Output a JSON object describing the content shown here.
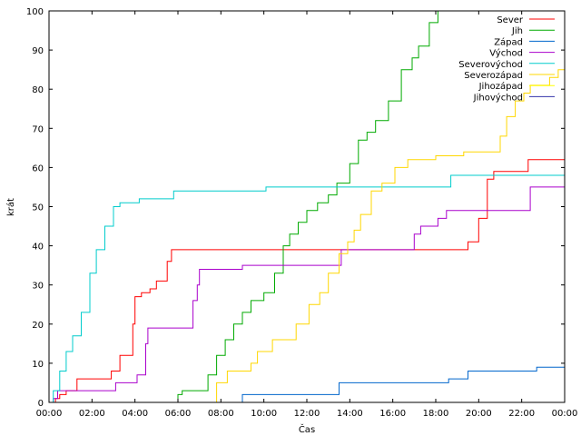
{
  "chart_data": {
    "type": "line",
    "title": "",
    "xlabel": "Čas",
    "ylabel": "krát",
    "xlim": [
      0,
      24
    ],
    "ylim": [
      0,
      100
    ],
    "xticks": [
      {
        "v": 0,
        "label": "00:00"
      },
      {
        "v": 2,
        "label": "02:00"
      },
      {
        "v": 4,
        "label": "04:00"
      },
      {
        "v": 6,
        "label": "06:00"
      },
      {
        "v": 8,
        "label": "08:00"
      },
      {
        "v": 10,
        "label": "10:00"
      },
      {
        "v": 12,
        "label": "12:00"
      },
      {
        "v": 14,
        "label": "14:00"
      },
      {
        "v": 16,
        "label": "16:00"
      },
      {
        "v": 18,
        "label": "18:00"
      },
      {
        "v": 20,
        "label": "20:00"
      },
      {
        "v": 22,
        "label": "22:00"
      },
      {
        "v": 24,
        "label": "00:00"
      }
    ],
    "yticks": [
      {
        "v": 0,
        "label": "0"
      },
      {
        "v": 10,
        "label": "10"
      },
      {
        "v": 20,
        "label": "20"
      },
      {
        "v": 30,
        "label": "30"
      },
      {
        "v": 40,
        "label": "40"
      },
      {
        "v": 50,
        "label": "50"
      },
      {
        "v": 60,
        "label": "60"
      },
      {
        "v": 70,
        "label": "70"
      },
      {
        "v": 80,
        "label": "80"
      },
      {
        "v": 90,
        "label": "90"
      },
      {
        "v": 100,
        "label": "100"
      }
    ],
    "grid": false,
    "legend": "top-right",
    "series": [
      {
        "name": "Sever",
        "color": "#ff0000",
        "x": [
          0,
          0.3,
          0.5,
          0.8,
          1.3,
          2.7,
          2.9,
          3.3,
          3.6,
          3.9,
          4.0,
          4.3,
          4.7,
          5.0,
          5.5,
          5.7,
          19.2,
          19.5,
          20.0,
          20.4,
          20.7,
          22.0,
          22.3,
          24.0
        ],
        "y": [
          0,
          1,
          2,
          3,
          6,
          6,
          8,
          12,
          12,
          20,
          27,
          28,
          29,
          31,
          36,
          39,
          39,
          41,
          47,
          57,
          59,
          59,
          62,
          62
        ]
      },
      {
        "name": "Jih",
        "color": "#00aa00",
        "x": [
          0,
          5.8,
          6.0,
          6.2,
          7.0,
          7.4,
          7.8,
          8.2,
          8.6,
          9.0,
          9.4,
          10.0,
          10.5,
          10.9,
          11.2,
          11.6,
          12.0,
          12.5,
          13.0,
          13.4,
          14.0,
          14.4,
          14.8,
          15.2,
          15.8,
          16.4,
          16.9,
          17.2,
          17.7,
          18.1,
          24.0
        ],
        "y": [
          0,
          0,
          2,
          3,
          3,
          7,
          12,
          16,
          20,
          23,
          26,
          28,
          33,
          40,
          43,
          46,
          49,
          51,
          53,
          56,
          61,
          67,
          69,
          72,
          77,
          85,
          88,
          91,
          97,
          100,
          100
        ]
      },
      {
        "name": "Západ",
        "color": "#0066cc",
        "x": [
          0,
          8.9,
          9.0,
          13.4,
          13.5,
          18.5,
          18.6,
          19.4,
          19.5,
          22.6,
          22.7,
          24.0
        ],
        "y": [
          0,
          0,
          2,
          2,
          5,
          5,
          6,
          6,
          8,
          8,
          9,
          9
        ]
      },
      {
        "name": "Východ",
        "color": "#aa00cc",
        "x": [
          0,
          0.2,
          0.4,
          3.0,
          3.1,
          4.0,
          4.1,
          4.5,
          4.6,
          6.4,
          6.7,
          6.9,
          7.0,
          9.0,
          13.3,
          13.6,
          16.8,
          17.0,
          17.3,
          17.6,
          18.1,
          18.5,
          18.8,
          22.2,
          22.4,
          24.0
        ],
        "y": [
          0,
          1,
          3,
          3,
          5,
          5,
          7,
          15,
          19,
          19,
          26,
          30,
          34,
          35,
          35,
          39,
          39,
          43,
          45,
          45,
          47,
          49,
          49,
          49,
          55,
          55
        ]
      },
      {
        "name": "Severovýchod",
        "color": "#00cccc",
        "x": [
          0,
          0.2,
          0.5,
          0.8,
          1.1,
          1.5,
          1.9,
          2.2,
          2.6,
          3.0,
          3.3,
          4.2,
          5.6,
          5.8,
          9.9,
          10.1,
          18.5,
          18.7,
          24.0
        ],
        "y": [
          0,
          3,
          8,
          13,
          17,
          23,
          33,
          39,
          45,
          50,
          51,
          52,
          52,
          54,
          54,
          55,
          55,
          58,
          58
        ]
      },
      {
        "name": "Severozápad",
        "color": "#ffd700",
        "x": [
          0,
          7.6,
          7.8,
          8.3,
          8.6,
          9.4,
          9.7,
          10.4,
          10.9,
          11.5,
          12.1,
          12.6,
          13.0,
          13.5,
          13.9,
          14.2,
          14.5,
          15.0,
          15.5,
          16.1,
          16.7,
          17.5,
          18.0,
          19.0,
          19.3,
          20.4,
          21.0,
          21.3,
          21.7,
          22.1,
          22.4,
          23.0,
          23.3,
          23.7,
          24.0
        ],
        "y": [
          0,
          0,
          5,
          8,
          8,
          10,
          13,
          16,
          16,
          20,
          25,
          28,
          33,
          38,
          41,
          44,
          48,
          54,
          56,
          60,
          62,
          62,
          63,
          63,
          64,
          64,
          68,
          73,
          77,
          79,
          81,
          81,
          83,
          85,
          88
        ]
      },
      {
        "name": "Jihozápad",
        "color": "#ffff00",
        "x": [],
        "y": []
      },
      {
        "name": "Jihovýchod",
        "color": "#3333aa",
        "x": [],
        "y": []
      }
    ]
  }
}
